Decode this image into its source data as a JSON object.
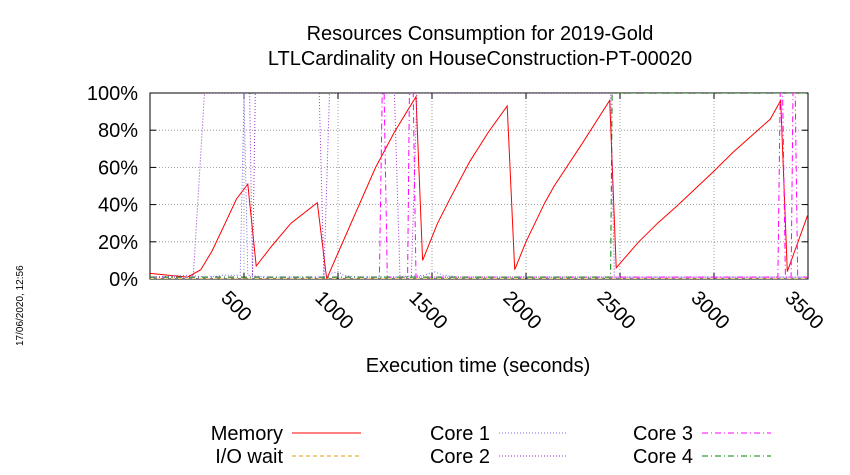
{
  "timestamp": "17/06/2020, 12:56",
  "chart_data": {
    "type": "line",
    "title": "Resources Consumption for 2019-Gold",
    "subtitle": "LTLCardinality on HouseConstruction-PT-00020",
    "xlabel": "Execution time (seconds)",
    "ylabel": "",
    "xlim": [
      0,
      3500
    ],
    "ylim": [
      0,
      100
    ],
    "x_ticks": [
      500,
      1000,
      1500,
      2000,
      2500,
      3000,
      3500
    ],
    "y_ticks": [
      0,
      20,
      40,
      60,
      80,
      100
    ],
    "y_tick_labels": [
      "0%",
      "20%",
      "40%",
      "60%",
      "80%",
      "100%"
    ],
    "grid": true,
    "legend_position": "bottom",
    "series": [
      {
        "name": "Memory",
        "color": "#ff0000",
        "style": "solid",
        "points": [
          [
            0,
            3
          ],
          [
            200,
            1
          ],
          [
            270,
            5
          ],
          [
            330,
            15
          ],
          [
            400,
            30
          ],
          [
            460,
            43
          ],
          [
            520,
            51
          ],
          [
            565,
            7
          ],
          [
            650,
            18
          ],
          [
            750,
            30
          ],
          [
            890,
            41
          ],
          [
            940,
            0
          ],
          [
            1000,
            14
          ],
          [
            1100,
            37
          ],
          [
            1200,
            60
          ],
          [
            1300,
            79
          ],
          [
            1415,
            98
          ],
          [
            1450,
            10
          ],
          [
            1530,
            30
          ],
          [
            1600,
            44
          ],
          [
            1700,
            63
          ],
          [
            1800,
            79
          ],
          [
            1900,
            93
          ],
          [
            1940,
            5
          ],
          [
            2000,
            20
          ],
          [
            2100,
            41
          ],
          [
            2150,
            50
          ],
          [
            2300,
            73
          ],
          [
            2445,
            96
          ],
          [
            2480,
            6
          ],
          [
            2600,
            20
          ],
          [
            2700,
            30
          ],
          [
            2800,
            39
          ],
          [
            3000,
            58
          ],
          [
            3100,
            68
          ],
          [
            3300,
            86
          ],
          [
            3355,
            96
          ],
          [
            3390,
            4
          ],
          [
            3440,
            18
          ],
          [
            3515,
            39
          ]
        ]
      },
      {
        "name": "I/O wait",
        "color": "#e0a000",
        "style": "dashed",
        "points": [
          [
            0,
            0
          ],
          [
            3515,
            0
          ]
        ]
      },
      {
        "name": "Core 1",
        "color": "#7b68ee",
        "style": "dotted",
        "points": [
          [
            0,
            1
          ],
          [
            200,
            2
          ],
          [
            300,
            1
          ],
          [
            400,
            2
          ],
          [
            480,
            2
          ],
          [
            500,
            100
          ],
          [
            520,
            2
          ],
          [
            620,
            1
          ],
          [
            900,
            1
          ],
          [
            930,
            1
          ],
          [
            960,
            3
          ],
          [
            1000,
            4
          ],
          [
            1030,
            2
          ],
          [
            1100,
            1
          ],
          [
            1300,
            1
          ],
          [
            1460,
            2
          ],
          [
            1510,
            4
          ],
          [
            1560,
            2
          ],
          [
            1650,
            1
          ],
          [
            3515,
            1
          ]
        ]
      },
      {
        "name": "Core 2",
        "color": "#9932cc",
        "style": "dotted",
        "points": [
          [
            0,
            1
          ],
          [
            230,
            1
          ],
          [
            290,
            100
          ],
          [
            530,
            100
          ],
          [
            545,
            1
          ],
          [
            560,
            100
          ],
          [
            900,
            100
          ],
          [
            925,
            1
          ],
          [
            955,
            100
          ],
          [
            1300,
            100
          ],
          [
            1330,
            1
          ],
          [
            1390,
            1
          ],
          [
            1420,
            100
          ],
          [
            2450,
            100
          ],
          [
            2470,
            1
          ],
          [
            2500,
            1
          ],
          [
            3515,
            1
          ]
        ]
      },
      {
        "name": "Core 3",
        "color": "#ff00ff",
        "style": "dashdot",
        "points": [
          [
            0,
            1
          ],
          [
            1220,
            1
          ],
          [
            1235,
            100
          ],
          [
            1245,
            100
          ],
          [
            1262,
            1
          ],
          [
            1370,
            1
          ],
          [
            1380,
            100
          ],
          [
            1400,
            100
          ],
          [
            1415,
            1
          ],
          [
            3340,
            1
          ],
          [
            3352,
            100
          ],
          [
            3365,
            100
          ],
          [
            3380,
            1
          ],
          [
            3410,
            1
          ],
          [
            3420,
            100
          ],
          [
            3432,
            100
          ],
          [
            3445,
            1
          ],
          [
            3515,
            1
          ]
        ]
      },
      {
        "name": "Core 4",
        "color": "#008000",
        "style": "dashdot",
        "points": [
          [
            0,
            1
          ],
          [
            2450,
            1
          ],
          [
            2458,
            100
          ],
          [
            3515,
            100
          ]
        ]
      }
    ]
  }
}
